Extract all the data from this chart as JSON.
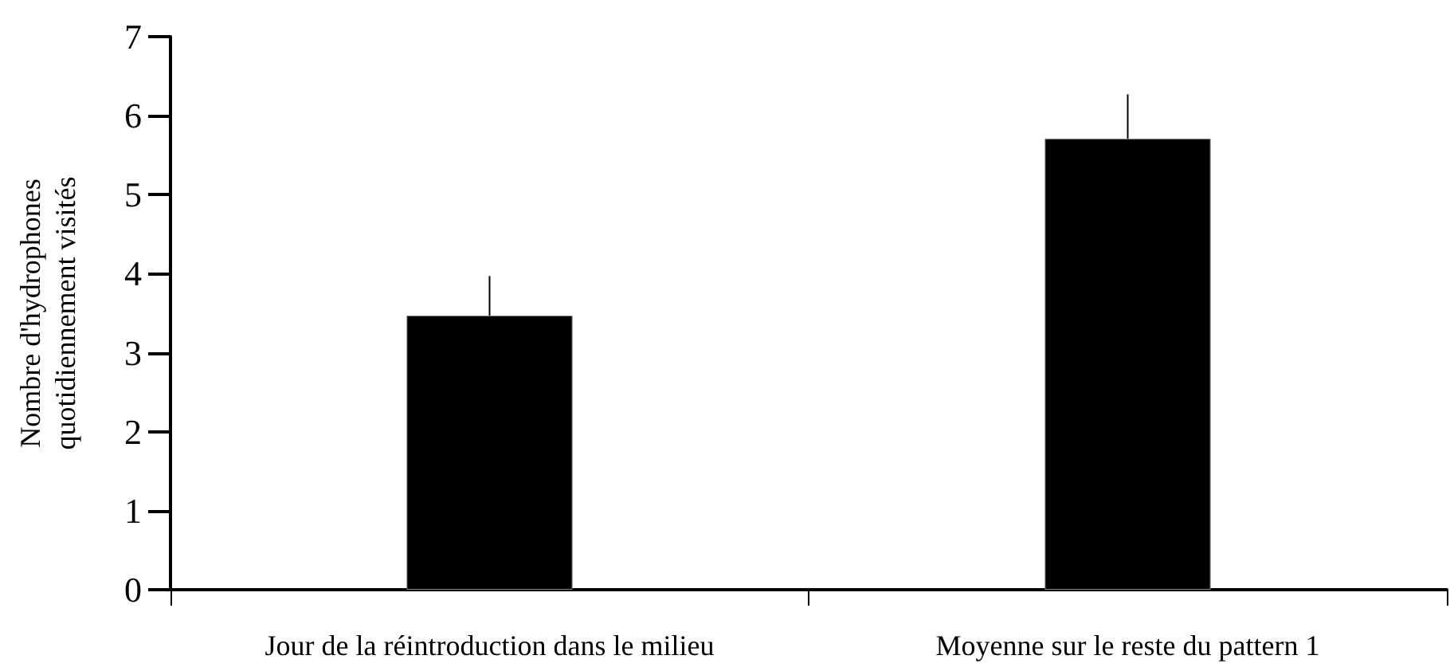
{
  "chart_data": {
    "type": "bar",
    "ylabel": "Nombre d'hydrophones\nquotidiennement visités",
    "categories": [
      "Jour de la réintroduction dans le milieu",
      "Moyenne sur le reste du pattern 1"
    ],
    "values": [
      3.47,
      5.71
    ],
    "color": "#000000",
    "errors": [
      [
        3.47,
        3.97
      ],
      [
        5.71,
        6.27
      ]
    ],
    "ylim": [
      0,
      7
    ],
    "yticks": [
      0,
      1,
      2,
      3,
      4,
      5,
      6,
      7
    ],
    "grid": false
  }
}
